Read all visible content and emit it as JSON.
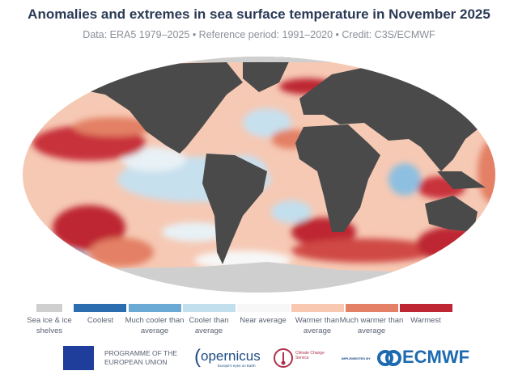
{
  "header": {
    "title": "Anomalies and extremes in sea surface temperature in November 2025",
    "subtitle": "Data: ERA5 1979–2025 • Reference period: 1991–2020 • Credit: C3S/ECMWF"
  },
  "legend": [
    {
      "label": "Sea ice & ice shelves",
      "color": "#cfcfcf"
    },
    {
      "label": "Coolest",
      "color": "#2c6db0"
    },
    {
      "label": "Much cooler than average",
      "color": "#6aaad4"
    },
    {
      "label": "Cooler than average",
      "color": "#c2dfee"
    },
    {
      "label": "Near average",
      "color": "#f7f7f7"
    },
    {
      "label": "Warmer than average",
      "color": "#f9c8b0"
    },
    {
      "label": "Much warmer than average",
      "color": "#e38065"
    },
    {
      "label": "Warmest",
      "color": "#bd2632"
    }
  ],
  "colors": {
    "land": "#4a4a4a",
    "title": "#2b3a55"
  },
  "logos": {
    "eu": "PROGRAMME OF THE EUROPEAN UNION",
    "copernicus": "opernicus",
    "copernicus_tag": "Europe's eyes on Earth",
    "c3s": "Climate Change Service",
    "implemented": "IMPLEMENTED BY",
    "ecmwf": "ECMWF"
  }
}
